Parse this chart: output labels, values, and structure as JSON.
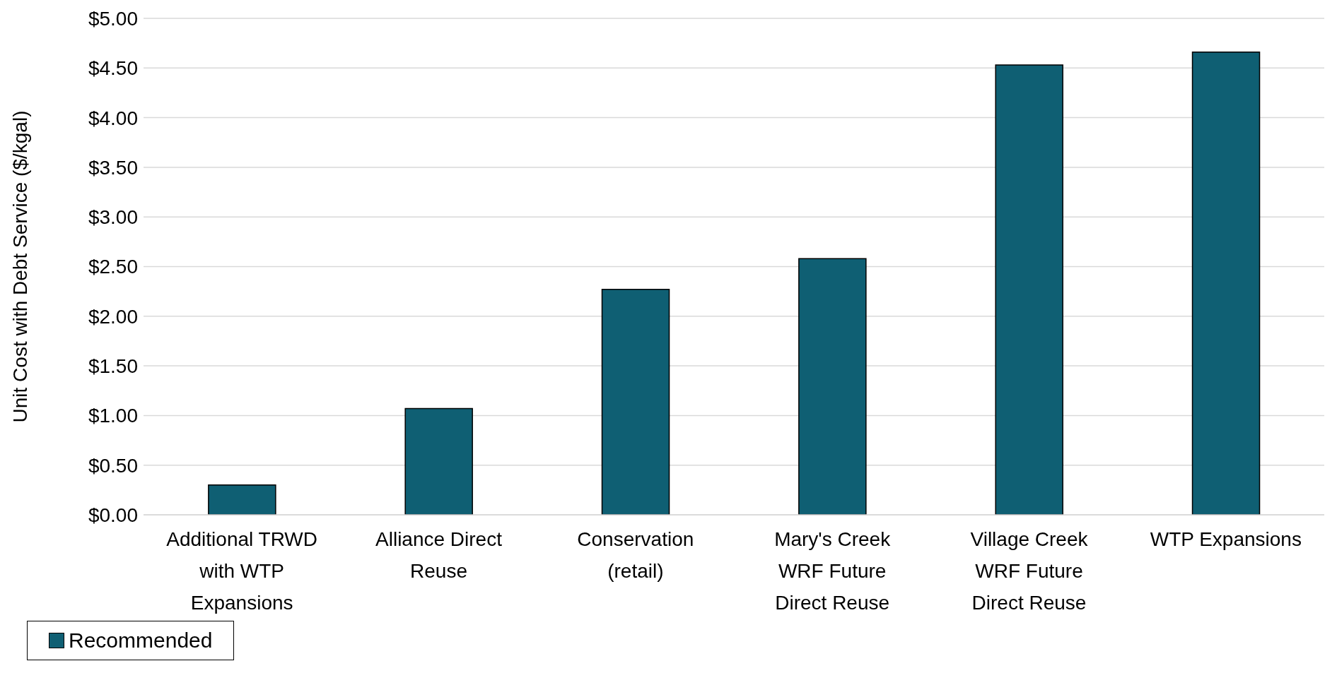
{
  "chart_data": {
    "type": "bar",
    "ylabel": "Unit Cost with Debt Service ($/kgal)",
    "categories": [
      "Additional TRWD with WTP Expansions",
      "Alliance Direct Reuse",
      "Conservation (retail)",
      "Mary's Creek WRF Future Direct Reuse",
      "Village Creek WRF Future Direct Reuse",
      "WTP Expansions"
    ],
    "series": [
      {
        "name": "Recommended",
        "color": "#0f5f73",
        "values": [
          0.3,
          1.07,
          2.27,
          2.58,
          4.53,
          4.66
        ]
      }
    ],
    "ylim": [
      0,
      5
    ],
    "yticks": [
      {
        "value": 0,
        "label": "$0.00"
      },
      {
        "value": 0.5,
        "label": "$0.50"
      },
      {
        "value": 1,
        "label": "$1.00"
      },
      {
        "value": 1.5,
        "label": "$1.50"
      },
      {
        "value": 2,
        "label": "$2.00"
      },
      {
        "value": 2.5,
        "label": "$2.50"
      },
      {
        "value": 3,
        "label": "$3.00"
      },
      {
        "value": 3.5,
        "label": "$3.50"
      },
      {
        "value": 4,
        "label": "$4.00"
      },
      {
        "value": 4.5,
        "label": "$4.50"
      },
      {
        "value": 5,
        "label": "$5.00"
      }
    ],
    "grid": "y",
    "legend": "bottom"
  }
}
